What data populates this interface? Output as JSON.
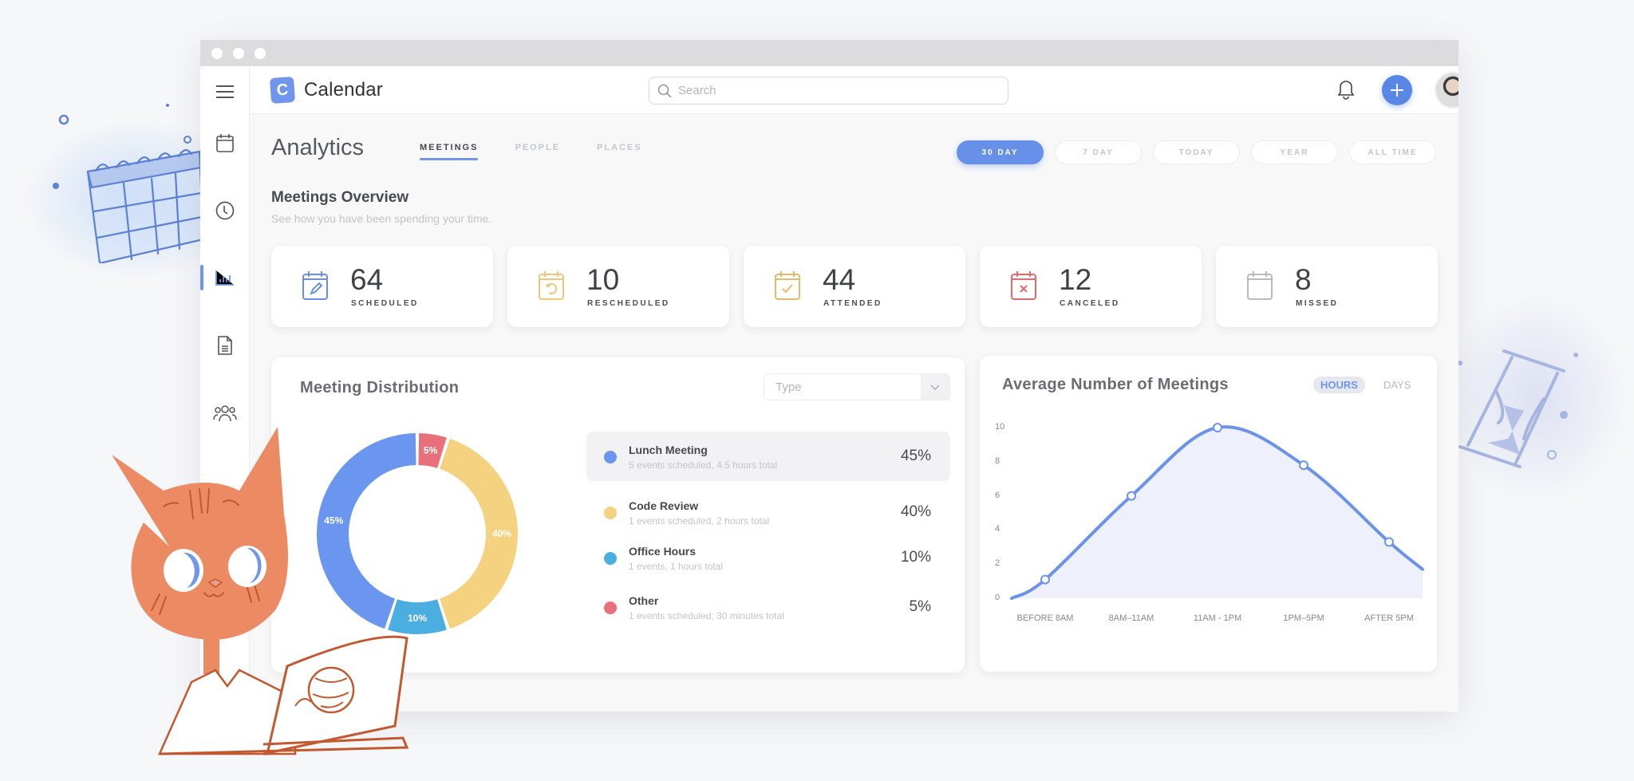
{
  "app": {
    "name": "Calendar",
    "logo_letter": "C"
  },
  "search": {
    "placeholder": "Search",
    "value": ""
  },
  "sidebar": {
    "items": [
      {
        "name": "menu",
        "icon": "hamburger-icon"
      },
      {
        "name": "calendar",
        "icon": "calendar-icon"
      },
      {
        "name": "clock",
        "icon": "clock-icon"
      },
      {
        "name": "analytics",
        "icon": "bar-chart-icon",
        "active": true
      },
      {
        "name": "documents",
        "icon": "document-icon"
      },
      {
        "name": "people",
        "icon": "people-icon"
      }
    ]
  },
  "header": {
    "notifications_icon": "bell-icon",
    "add_icon": "plus-icon",
    "avatar_icon": "user-avatar",
    "menu_caret": "⌄"
  },
  "page": {
    "title": "Analytics",
    "tabs": [
      {
        "label": "MEETINGS",
        "active": true
      },
      {
        "label": "PEOPLE",
        "active": false
      },
      {
        "label": "PLACES",
        "active": false
      }
    ],
    "ranges": [
      {
        "label": "30 DAY",
        "active": true
      },
      {
        "label": "7 DAY",
        "active": false
      },
      {
        "label": "TODAY",
        "active": false
      },
      {
        "label": "YEAR",
        "active": false
      },
      {
        "label": "ALL TIME",
        "active": false
      }
    ]
  },
  "overview": {
    "title": "Meetings Overview",
    "subtitle": "See how you have been spending your time.",
    "stats": [
      {
        "value": "64",
        "label": "SCHEDULED",
        "icon": "calendar-edit-icon",
        "color": "#6b8fe6"
      },
      {
        "value": "10",
        "label": "RESCHEDULED",
        "icon": "calendar-reschedule-icon",
        "color": "#f1c777"
      },
      {
        "value": "44",
        "label": "ATTENDED",
        "icon": "calendar-check-icon",
        "color": "#e7b96a"
      },
      {
        "value": "12",
        "label": "CANCELED",
        "icon": "calendar-x-icon",
        "color": "#e26a6a"
      },
      {
        "value": "8",
        "label": "MISSED",
        "icon": "calendar-blank-icon",
        "color": "#b9bbc0"
      }
    ]
  },
  "distribution": {
    "title": "Meeting Distribution",
    "select": {
      "value": "Type",
      "icon": "chevron-down-icon"
    },
    "items": [
      {
        "name": "Lunch Meeting",
        "desc": "5 events scheduled, 4.5 hours total",
        "pct": "45%",
        "value": 45,
        "color": "#6b96f0",
        "highlight": true
      },
      {
        "name": "Code Review",
        "desc": "1 events scheduled, 2 hours total",
        "pct": "40%",
        "value": 40,
        "color": "#f5d27f",
        "highlight": false
      },
      {
        "name": "Office Hours",
        "desc": "1 events, 1 hours total",
        "pct": "10%",
        "value": 10,
        "color": "#4aaee0",
        "highlight": false
      },
      {
        "name": "Other",
        "desc": "1 events scheduled, 30 minutes total",
        "pct": "5%",
        "value": 5,
        "color": "#e8707a",
        "highlight": false
      }
    ]
  },
  "average": {
    "title": "Average Number of Meetings",
    "toggle": [
      {
        "label": "HOURS",
        "active": true
      },
      {
        "label": "DAYS",
        "active": false
      }
    ]
  },
  "chart_data": [
    {
      "type": "pie",
      "title": "Meeting Distribution",
      "categories": [
        "Lunch Meeting",
        "Code Review",
        "Office Hours",
        "Other"
      ],
      "values": [
        45,
        40,
        10,
        5
      ],
      "labels": [
        "45%",
        "40%",
        "10%",
        "5%"
      ],
      "colors": [
        "#6b96f0",
        "#f5d27f",
        "#4aaee0",
        "#e8707a"
      ],
      "donut": true
    },
    {
      "type": "area",
      "title": "Average Number of Meetings",
      "categories": [
        "BEFORE 8AM",
        "8AM–11AM",
        "11AM - 1PM",
        "1PM–5PM",
        "AFTER 5PM"
      ],
      "values": [
        1.1,
        6,
        10,
        7.8,
        3.3
      ],
      "start_value": 0,
      "end_value": 1.7,
      "yticks": [
        0,
        2,
        4,
        6,
        8,
        10
      ],
      "ylim": [
        0,
        10
      ],
      "xlabel": "",
      "ylabel": "",
      "grid": false,
      "line_color": "#6b93ea",
      "fill_color": "#eef1fb"
    }
  ]
}
